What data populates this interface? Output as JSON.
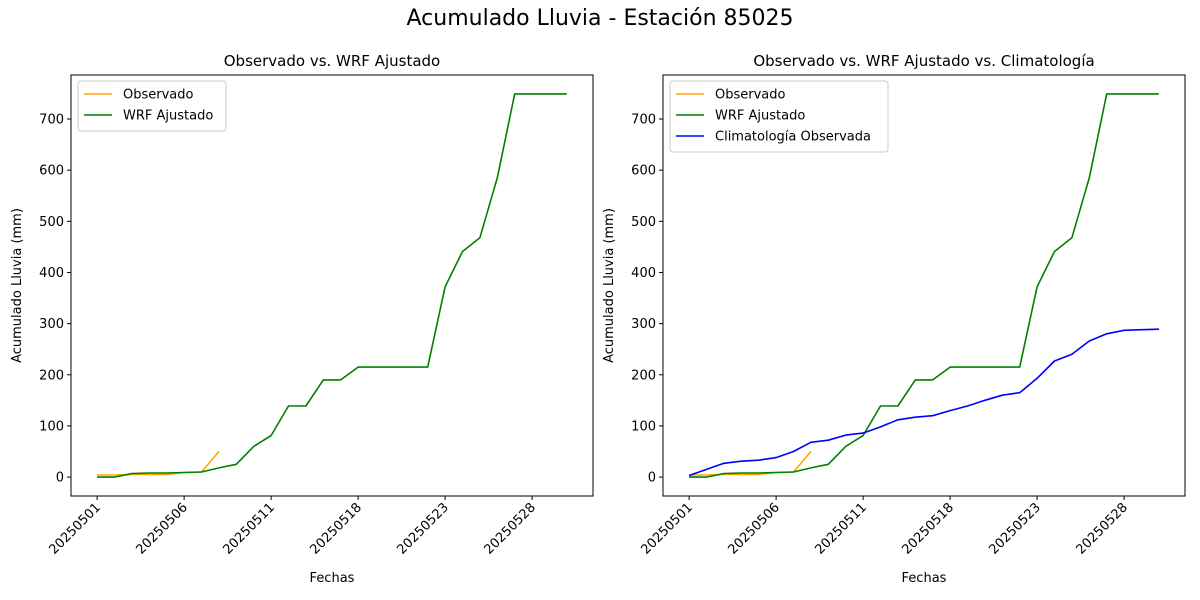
{
  "suptitle": "Acumulado Lluvia - Estación 85025",
  "chart_data": [
    {
      "type": "line",
      "title": "Observado vs. WRF Ajustado",
      "xlabel": "Fechas",
      "ylabel": "Acumulado Lluvia (mm)",
      "x_tick_labels": [
        "20250501",
        "20250506",
        "20250511",
        "20250518",
        "20250523",
        "20250528"
      ],
      "y_ticks": [
        0,
        100,
        200,
        300,
        400,
        500,
        600,
        700
      ],
      "ylim": [
        -37,
        786
      ],
      "x_range": [
        -1.5,
        28.5
      ],
      "grid": false,
      "legend_position": "top-left",
      "series": [
        {
          "name": "Observado",
          "color": "#ffa500",
          "x": [
            0,
            1,
            2,
            3,
            4,
            5,
            6,
            7
          ],
          "values": [
            4,
            4,
            5,
            5,
            5,
            9,
            10,
            50
          ]
        },
        {
          "name": "WRF Ajustado",
          "color": "#008000",
          "x": [
            0,
            1,
            2,
            3,
            4,
            5,
            6,
            7,
            8,
            9,
            10,
            11,
            12,
            13,
            14,
            15,
            16,
            17,
            18,
            19,
            20,
            21,
            22,
            23,
            24,
            25,
            26,
            27
          ],
          "values": [
            0,
            0,
            7,
            8,
            8,
            9,
            10,
            18,
            25,
            60,
            81,
            139,
            139,
            190,
            190,
            215,
            215,
            215,
            215,
            215,
            372,
            441,
            468,
            585,
            749,
            749,
            749,
            749
          ]
        }
      ]
    },
    {
      "type": "line",
      "title": "Observado vs. WRF Ajustado vs. Climatología",
      "xlabel": "Fechas",
      "ylabel": "Acumulado Lluvia (mm)",
      "x_tick_labels": [
        "20250501",
        "20250506",
        "20250511",
        "20250518",
        "20250523",
        "20250528"
      ],
      "y_ticks": [
        0,
        100,
        200,
        300,
        400,
        500,
        600,
        700
      ],
      "ylim": [
        -37,
        786
      ],
      "x_range": [
        -1.5,
        28.5
      ],
      "grid": false,
      "legend_position": "top-left",
      "series": [
        {
          "name": "Observado",
          "color": "#ffa500",
          "x": [
            0,
            1,
            2,
            3,
            4,
            5,
            6,
            7
          ],
          "values": [
            4,
            4,
            5,
            5,
            5,
            9,
            10,
            50
          ]
        },
        {
          "name": "WRF Ajustado",
          "color": "#008000",
          "x": [
            0,
            1,
            2,
            3,
            4,
            5,
            6,
            7,
            8,
            9,
            10,
            11,
            12,
            13,
            14,
            15,
            16,
            17,
            18,
            19,
            20,
            21,
            22,
            23,
            24,
            25,
            26,
            27
          ],
          "values": [
            0,
            0,
            7,
            8,
            8,
            9,
            10,
            18,
            25,
            60,
            81,
            139,
            139,
            190,
            190,
            215,
            215,
            215,
            215,
            215,
            372,
            441,
            468,
            585,
            749,
            749,
            749,
            749
          ]
        },
        {
          "name": "Climatología Observada",
          "color": "#0000ff",
          "x": [
            0,
            1,
            2,
            3,
            4,
            5,
            6,
            7,
            8,
            9,
            10,
            11,
            12,
            13,
            14,
            15,
            16,
            17,
            18,
            19,
            20,
            21,
            22,
            23,
            24,
            25,
            26,
            27
          ],
          "values": [
            3,
            15,
            27,
            31,
            33,
            38,
            50,
            68,
            72,
            82,
            86,
            98,
            112,
            117,
            120,
            130,
            139,
            150,
            160,
            165,
            193,
            227,
            240,
            266,
            280,
            287,
            288,
            289
          ]
        }
      ]
    }
  ]
}
